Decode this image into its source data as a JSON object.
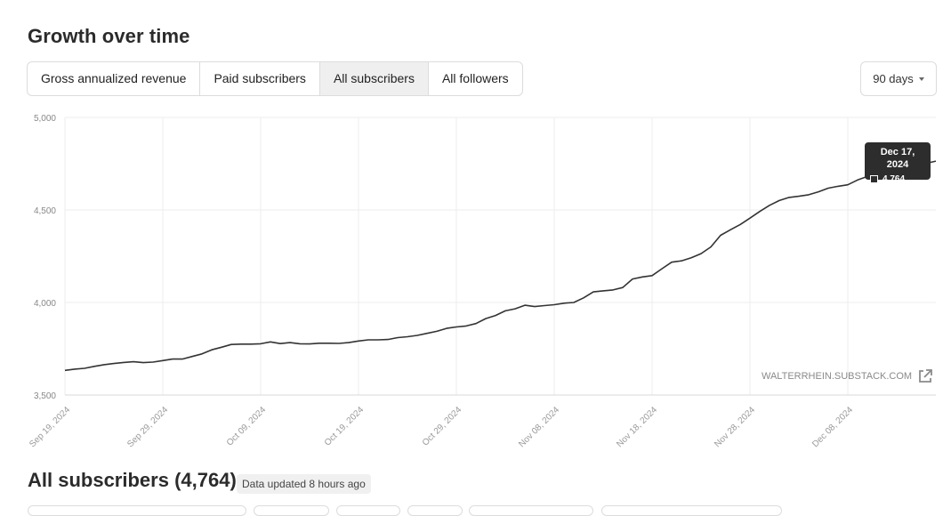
{
  "header": {
    "title": "Growth over time"
  },
  "tabs": [
    {
      "label": "Gross annualized revenue",
      "active": false
    },
    {
      "label": "Paid subscribers",
      "active": false
    },
    {
      "label": "All subscribers",
      "active": true
    },
    {
      "label": "All followers",
      "active": false
    }
  ],
  "range_select": {
    "value": "90 days"
  },
  "tooltip": {
    "date": "Dec 17, 2024",
    "value": "4,764"
  },
  "watermark": "WALTERRHEIN.SUBSTACK.COM",
  "footer": {
    "title": "All subscribers (4,764)",
    "updated": "Data updated 8 hours ago"
  },
  "colors": {
    "line": "#333333",
    "grid": "#eeeeee",
    "tooltip_bg": "#2d2d2d",
    "active_tab_bg": "#efefef"
  },
  "chart_data": {
    "type": "line",
    "series": [
      {
        "x": [
          "2024-09-19",
          "2024-09-20",
          "2024-09-21",
          "2024-09-22",
          "2024-09-23",
          "2024-09-24",
          "2024-09-25",
          "2024-09-26",
          "2024-09-27",
          "2024-09-28",
          "2024-09-29",
          "2024-09-30",
          "2024-10-01",
          "2024-10-02",
          "2024-10-03",
          "2024-10-04",
          "2024-10-05",
          "2024-10-06",
          "2024-10-07",
          "2024-10-08",
          "2024-10-09",
          "2024-10-10",
          "2024-10-11",
          "2024-10-12",
          "2024-10-13",
          "2024-10-14",
          "2024-10-15",
          "2024-10-16",
          "2024-10-17",
          "2024-10-18",
          "2024-10-19",
          "2024-10-20",
          "2024-10-21",
          "2024-10-22",
          "2024-10-23",
          "2024-10-24",
          "2024-10-25",
          "2024-10-26",
          "2024-10-27",
          "2024-10-28",
          "2024-10-29",
          "2024-10-30",
          "2024-10-31",
          "2024-11-01",
          "2024-11-02",
          "2024-11-03",
          "2024-11-04",
          "2024-11-05",
          "2024-11-06",
          "2024-11-07",
          "2024-11-08",
          "2024-11-09",
          "2024-11-10",
          "2024-11-11",
          "2024-11-12",
          "2024-11-13",
          "2024-11-14",
          "2024-11-15",
          "2024-11-16",
          "2024-11-17",
          "2024-11-18",
          "2024-11-19",
          "2024-11-20",
          "2024-11-21",
          "2024-11-22",
          "2024-11-23",
          "2024-11-24",
          "2024-11-25",
          "2024-11-26",
          "2024-11-27",
          "2024-11-28",
          "2024-11-29",
          "2024-11-30",
          "2024-12-01",
          "2024-12-02",
          "2024-12-03",
          "2024-12-04",
          "2024-12-05",
          "2024-12-06",
          "2024-12-07",
          "2024-12-08",
          "2024-12-09",
          "2024-12-10",
          "2024-12-11",
          "2024-12-12",
          "2024-12-13",
          "2024-12-14",
          "2024-12-15",
          "2024-12-16",
          "2024-12-17"
        ],
        "values": [
          3633,
          3640,
          3644,
          3655,
          3664,
          3670,
          3676,
          3680,
          3675,
          3678,
          3686,
          3694,
          3694,
          3708,
          3722,
          3744,
          3758,
          3773,
          3775,
          3775,
          3777,
          3787,
          3778,
          3783,
          3777,
          3776,
          3780,
          3780,
          3779,
          3783,
          3792,
          3798,
          3798,
          3800,
          3810,
          3815,
          3822,
          3833,
          3844,
          3860,
          3868,
          3873,
          3886,
          3913,
          3930,
          3955,
          3966,
          3985,
          3978,
          3983,
          3988,
          3996,
          4000,
          4025,
          4057,
          4063,
          4068,
          4081,
          4127,
          4138,
          4145,
          4182,
          4218,
          4225,
          4242,
          4264,
          4300,
          4363,
          4393,
          4421,
          4456,
          4492,
          4525,
          4551,
          4568,
          4574,
          4582,
          4598,
          4618,
          4628,
          4636,
          4662,
          4681,
          4692,
          4708,
          4719,
          4730,
          4741,
          4752,
          4764
        ]
      }
    ],
    "x_ticks": [
      "Sep 19, 2024",
      "Sep 29, 2024",
      "Oct 09, 2024",
      "Oct 19, 2024",
      "Oct 29, 2024",
      "Nov 08, 2024",
      "Nov 18, 2024",
      "Nov 28, 2024",
      "Dec 08, 2024"
    ],
    "y_ticks": [
      "3,500",
      "4,000",
      "4,500",
      "5,000"
    ],
    "ylim": [
      3500,
      5000
    ],
    "grid": true,
    "title": "",
    "xlabel": "",
    "ylabel": ""
  }
}
